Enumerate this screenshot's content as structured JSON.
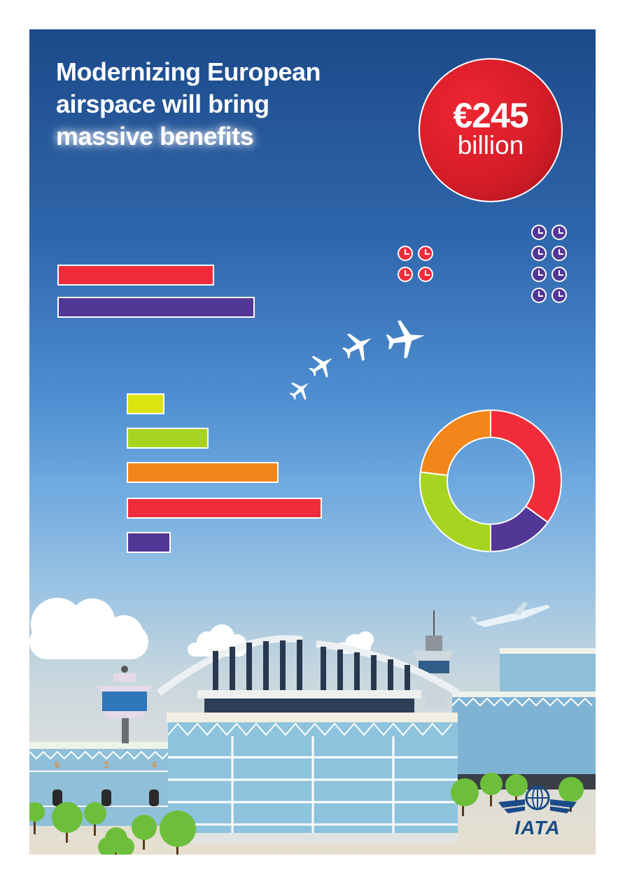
{
  "headline": {
    "line1": "Modernizing European",
    "line2": "airspace will bring",
    "line3": "massive benefits"
  },
  "highlight": {
    "amount": "€245",
    "unit": "billion"
  },
  "colors": {
    "red": "#f12c3a",
    "purple": "#533796",
    "yellow": "#dbe40e",
    "lime": "#a7d420",
    "orange": "#f3861b"
  },
  "comparison_bars": {
    "values": [
      0.35,
      0.44
    ],
    "colors": [
      "#f12c3a",
      "#533796"
    ]
  },
  "breakdown_bars": {
    "values": [
      0.19,
      0.41,
      0.76,
      0.98,
      0.22
    ],
    "colors": [
      "#dbe40e",
      "#a7d420",
      "#f3861b",
      "#f12c3a",
      "#533796"
    ]
  },
  "clocks": {
    "red_count": 4,
    "purple_count": 8
  },
  "donut": {
    "segments": [
      {
        "value": 35,
        "color": "#f12c3a"
      },
      {
        "value": 15,
        "color": "#533796"
      },
      {
        "value": 27,
        "color": "#a7d420"
      },
      {
        "value": 23,
        "color": "#f3861b"
      }
    ]
  },
  "gate_numbers": [
    "6",
    "5",
    "4"
  ],
  "logo": {
    "text": "IATA"
  }
}
